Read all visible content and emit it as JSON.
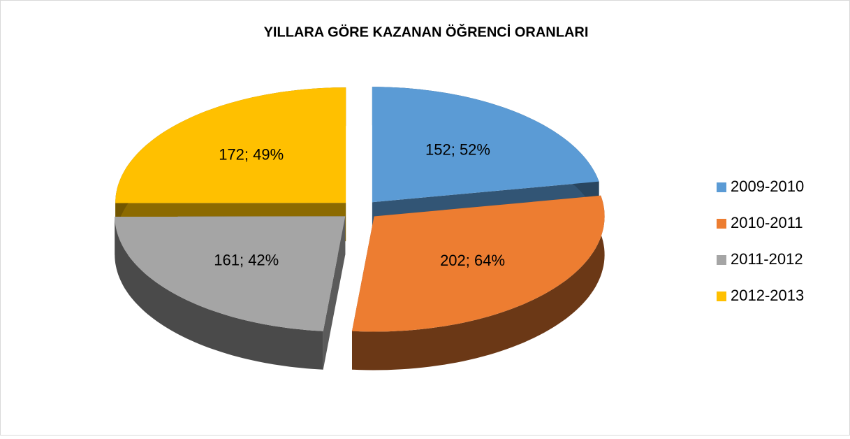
{
  "chart_data": {
    "type": "pie3d",
    "title": "YILLARA GÖRE KAZANAN ÖĞRENCİ ORANLARI",
    "categories": [
      "2009-2010",
      "2010-2011",
      "2011-2012",
      "2012-2013"
    ],
    "values": [
      152,
      202,
      161,
      172
    ],
    "value_labels": [
      "152; 52%",
      "202; 64%",
      "161; 42%",
      "172; 49%"
    ],
    "colors": [
      "#5b9bd5",
      "#ed7d31",
      "#a5a5a5",
      "#ffc000"
    ],
    "legend": "right"
  }
}
